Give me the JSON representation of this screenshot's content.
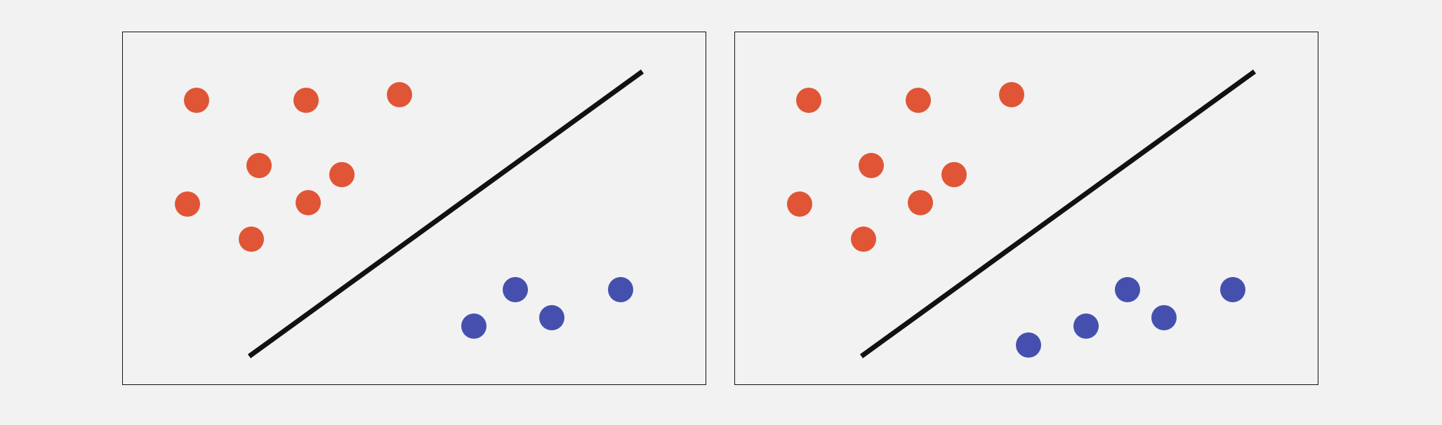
{
  "colors": {
    "background": "#f2f2f2",
    "frame": "#111111",
    "class_red": "#e05535",
    "class_blue": "#4550ae",
    "separator": "#111111"
  },
  "panels": [
    {
      "id": "left",
      "red_points": [
        [
          105,
          97
        ],
        [
          261,
          97
        ],
        [
          394,
          89
        ],
        [
          194,
          190
        ],
        [
          312,
          203
        ],
        [
          92,
          245
        ],
        [
          264,
          243
        ],
        [
          183,
          295
        ]
      ],
      "blue_points": [
        [
          559,
          367
        ],
        [
          709,
          367
        ],
        [
          611,
          407
        ],
        [
          500,
          419
        ]
      ],
      "separator": [
        [
          180,
          462
        ],
        [
          740,
          56
        ]
      ]
    },
    {
      "id": "right",
      "red_points": [
        [
          105,
          97
        ],
        [
          261,
          97
        ],
        [
          394,
          89
        ],
        [
          194,
          190
        ],
        [
          312,
          203
        ],
        [
          92,
          245
        ],
        [
          264,
          243
        ],
        [
          183,
          295
        ]
      ],
      "blue_points": [
        [
          559,
          367
        ],
        [
          709,
          367
        ],
        [
          611,
          407
        ],
        [
          500,
          419
        ],
        [
          418,
          446
        ]
      ],
      "separator": [
        [
          180,
          462
        ],
        [
          740,
          56
        ]
      ]
    }
  ]
}
